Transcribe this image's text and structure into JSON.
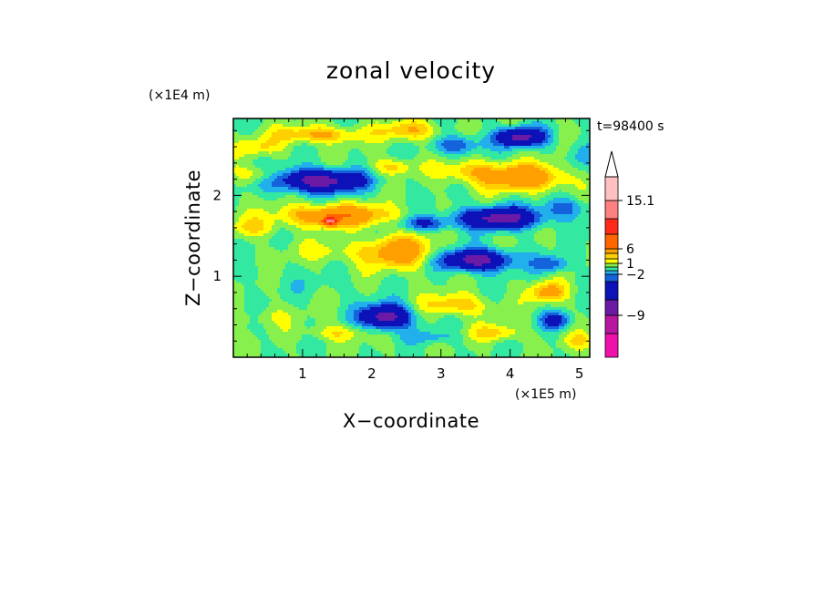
{
  "chart_data": {
    "type": "heatmap",
    "title": "zonal velocity",
    "xlabel": "X−coordinate",
    "ylabel": "Z−coordinate",
    "x_unit": "(×1E5 m)",
    "y_unit": "(×1E4 m)",
    "time_label": "t=98400 s",
    "xlim": [
      0,
      5.15
    ],
    "ylim": [
      0,
      2.95
    ],
    "x_ticks": [
      1,
      2,
      3,
      4,
      5
    ],
    "y_ticks": [
      1,
      2
    ],
    "x_tick_labels": [
      "1",
      "2",
      "3",
      "4",
      "5"
    ],
    "y_tick_labels": [
      "1",
      "2"
    ],
    "colorbar": {
      "levels": [
        -15,
        -12,
        -9,
        -6,
        -3,
        -2,
        -1,
        0,
        1,
        2,
        3,
        6,
        9,
        12,
        15.1
      ],
      "colors": [
        "#ee11aa",
        "#b6179f",
        "#6a1aa4",
        "#0c11b8",
        "#1463dc",
        "#22b0ec",
        "#33e8a0",
        "#88f04c",
        "#ffff00",
        "#ffd000",
        "#ffa000",
        "#ff6600",
        "#ff2a1a",
        "#ff8080",
        "#ffc0c0"
      ],
      "labels": [
        {
          "value": -9,
          "text": "−9"
        },
        {
          "value": -2,
          "text": "−2"
        },
        {
          "value": 1,
          "text": "1"
        },
        {
          "value": 6,
          "text": "6"
        },
        {
          "value": 15.1,
          "text": "15.1"
        }
      ]
    },
    "features": [
      {
        "x": 2.55,
        "z": 2.8,
        "a": 0.45,
        "b": 0.12,
        "v": 3
      },
      {
        "x": 1.2,
        "z": 2.75,
        "a": 0.6,
        "b": 0.1,
        "v": 3.5
      },
      {
        "x": 0.35,
        "z": 2.6,
        "a": 0.35,
        "b": 0.1,
        "v": 2
      },
      {
        "x": 4.15,
        "z": 2.72,
        "a": 0.35,
        "b": 0.11,
        "v": -7
      },
      {
        "x": 3.25,
        "z": 2.62,
        "a": 0.35,
        "b": 0.12,
        "v": -3
      },
      {
        "x": 1.25,
        "z": 2.18,
        "a": 0.62,
        "b": 0.14,
        "v": -7.5
      },
      {
        "x": 2.3,
        "z": 2.35,
        "a": 0.3,
        "b": 0.1,
        "v": 2.5
      },
      {
        "x": 3.4,
        "z": 2.3,
        "a": 0.45,
        "b": 0.13,
        "v": 2.5
      },
      {
        "x": 4.2,
        "z": 2.22,
        "a": 0.6,
        "b": 0.16,
        "v": 5
      },
      {
        "x": 0.35,
        "z": 2.25,
        "a": 0.3,
        "b": 0.1,
        "v": 2
      },
      {
        "x": 1.5,
        "z": 1.75,
        "a": 0.75,
        "b": 0.13,
        "v": 5.5
      },
      {
        "x": 1.4,
        "z": 1.68,
        "a": 0.1,
        "b": 0.05,
        "v": 10
      },
      {
        "x": 2.75,
        "z": 1.65,
        "a": 0.35,
        "b": 0.09,
        "v": -3.5
      },
      {
        "x": 3.85,
        "z": 1.72,
        "a": 0.6,
        "b": 0.13,
        "v": -7
      },
      {
        "x": 4.8,
        "z": 1.85,
        "a": 0.3,
        "b": 0.12,
        "v": -2.5
      },
      {
        "x": 0.3,
        "z": 1.6,
        "a": 0.35,
        "b": 0.12,
        "v": 2
      },
      {
        "x": 2.4,
        "z": 1.3,
        "a": 0.5,
        "b": 0.2,
        "v": 4.5
      },
      {
        "x": 3.5,
        "z": 1.2,
        "a": 0.5,
        "b": 0.13,
        "v": -7.5
      },
      {
        "x": 4.6,
        "z": 1.15,
        "a": 0.25,
        "b": 0.1,
        "v": -3
      },
      {
        "x": 1.4,
        "z": 1.3,
        "a": 0.5,
        "b": 0.12,
        "v": 1.5
      },
      {
        "x": 0.3,
        "z": 1.05,
        "a": 0.3,
        "b": 0.1,
        "v": -0.5
      },
      {
        "x": 1.2,
        "z": 0.88,
        "a": 0.5,
        "b": 0.12,
        "v": -0.5
      },
      {
        "x": 2.2,
        "z": 0.5,
        "a": 0.35,
        "b": 0.15,
        "v": -7.5
      },
      {
        "x": 1.5,
        "z": 0.3,
        "a": 0.4,
        "b": 0.1,
        "v": 2
      },
      {
        "x": 3.2,
        "z": 0.65,
        "a": 0.45,
        "b": 0.13,
        "v": 3
      },
      {
        "x": 4.55,
        "z": 0.8,
        "a": 0.25,
        "b": 0.12,
        "v": 4
      },
      {
        "x": 4.65,
        "z": 0.45,
        "a": 0.2,
        "b": 0.1,
        "v": -4
      },
      {
        "x": 3.8,
        "z": 0.3,
        "a": 0.35,
        "b": 0.1,
        "v": 2.5
      },
      {
        "x": 0.5,
        "z": 0.5,
        "a": 0.4,
        "b": 0.12,
        "v": 1
      },
      {
        "x": 2.85,
        "z": 0.25,
        "a": 0.35,
        "b": 0.08,
        "v": -1.5
      },
      {
        "x": 5.0,
        "z": 2.5,
        "a": 0.2,
        "b": 0.2,
        "v": -1.5
      },
      {
        "x": 5.0,
        "z": 0.2,
        "a": 0.2,
        "b": 0.1,
        "v": 2
      }
    ]
  }
}
